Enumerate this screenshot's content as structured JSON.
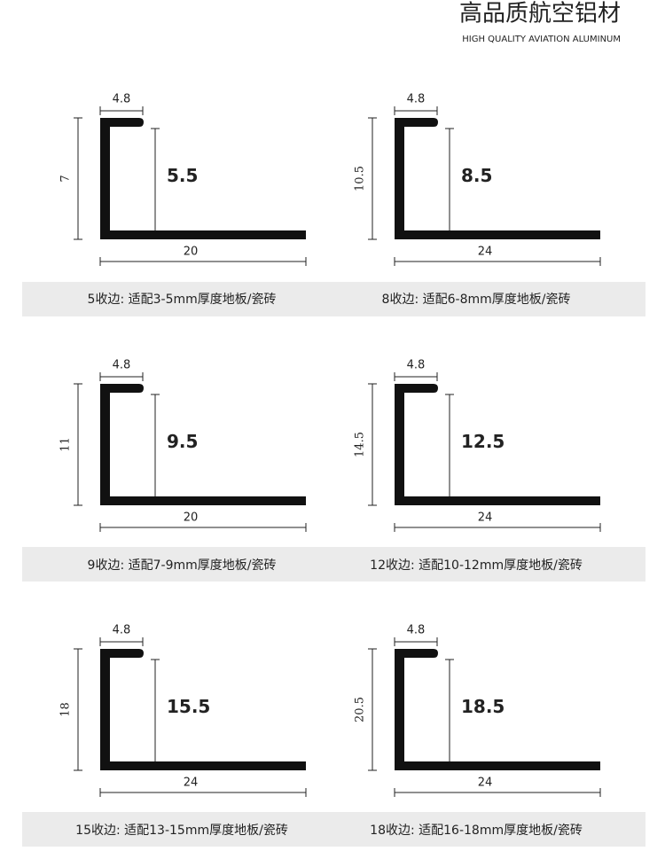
{
  "header": {
    "title": "高品质航空铝材",
    "subtitle": "HIGH QUALITY AVIATION ALUMINUM"
  },
  "profiles": [
    {
      "top_width": "4.8",
      "height": "7",
      "inner_height": "5.5",
      "bottom_width": "20",
      "caption": "5收边: 适配3-5mm厚度地板/瓷砖"
    },
    {
      "top_width": "4.8",
      "height": "10.5",
      "inner_height": "8.5",
      "bottom_width": "24",
      "caption": "8收边: 适配6-8mm厚度地板/瓷砖"
    },
    {
      "top_width": "4.8",
      "height": "11",
      "inner_height": "9.5",
      "bottom_width": "20",
      "caption": "9收边: 适配7-9mm厚度地板/瓷砖"
    },
    {
      "top_width": "4.8",
      "height": "14.5",
      "inner_height": "12.5",
      "bottom_width": "24",
      "caption": "12收边: 适配10-12mm厚度地板/瓷砖"
    },
    {
      "top_width": "4.8",
      "height": "18",
      "inner_height": "15.5",
      "bottom_width": "24",
      "caption": "15收边: 适配13-15mm厚度地板/瓷砖"
    },
    {
      "top_width": "4.8",
      "height": "20.5",
      "inner_height": "18.5",
      "bottom_width": "24",
      "caption": "18收边: 适配16-18mm厚度地板/瓷砖"
    }
  ]
}
